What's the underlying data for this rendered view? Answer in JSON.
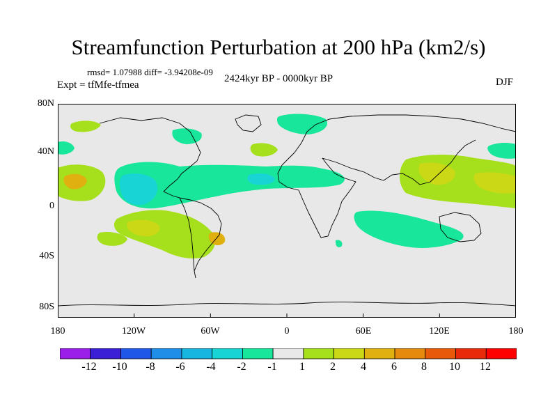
{
  "header": {
    "title": "Streamfunction Perturbation at 200 hPa (km2/s)",
    "stats": "rmsd= 1.07988 diff= -3.94208e-09",
    "experiment": "Expt = tfMfe-tfmea",
    "period": "2424kyr BP - 0000kyr BP",
    "season": "DJF"
  },
  "map": {
    "projection": "cylindrical-equidistant",
    "lon_range": [
      -180,
      180
    ],
    "lat_range": [
      -90,
      90
    ],
    "y_ticks": [
      "80N",
      "40N",
      "0",
      "40S",
      "80S"
    ],
    "x_ticks": [
      "180",
      "120W",
      "60W",
      "0",
      "60E",
      "120E",
      "180"
    ],
    "background_color": "#e8e8e8",
    "anomaly_regions": [
      {
        "name": "central-pacific-high",
        "sign": "positive",
        "level": "2-6"
      },
      {
        "name": "east-pacific-low",
        "sign": "negative",
        "level": "-2 to -4"
      },
      {
        "name": "atlantic-band-low",
        "sign": "negative",
        "level": "-1 to -2"
      },
      {
        "name": "south-america-high",
        "sign": "positive",
        "level": "2-4"
      },
      {
        "name": "west-pacific-high",
        "sign": "positive",
        "level": "2-4"
      },
      {
        "name": "indian-ocean-low",
        "sign": "negative",
        "level": "-1 to -2"
      }
    ]
  },
  "colorbar": {
    "labels": [
      "-12",
      "-10",
      "-8",
      "-6",
      "-4",
      "-2",
      "-1",
      "1",
      "2",
      "4",
      "6",
      "8",
      "10",
      "12"
    ],
    "colors": [
      "#9b1fe8",
      "#3a1fd6",
      "#1f57e8",
      "#1f8ee8",
      "#17b6e0",
      "#18d4d4",
      "#18e69a",
      "#e8e8e8",
      "#a6e01c",
      "#cbd816",
      "#e0b010",
      "#e58a0c",
      "#e85a0a",
      "#e82a0a",
      "#ff0000"
    ]
  }
}
